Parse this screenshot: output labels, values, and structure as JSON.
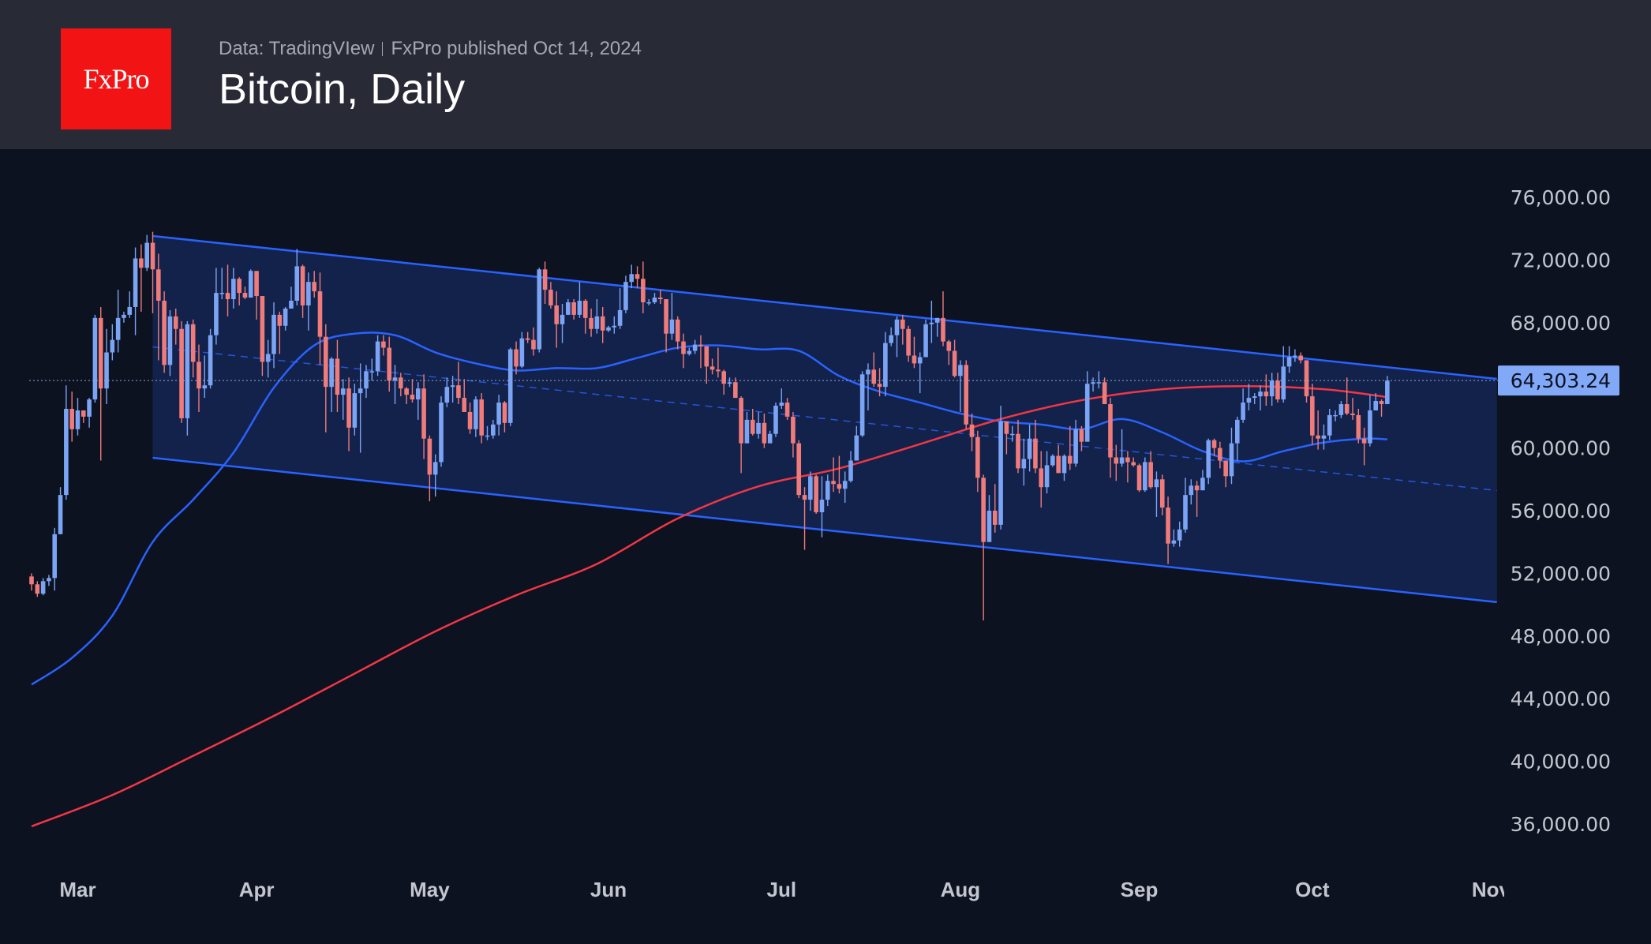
{
  "header": {
    "logo_text": "FxPro",
    "source": "Data: TradingVIew",
    "published": "FxPro published Oct 14, 2024",
    "title": "Bitcoin, Daily"
  },
  "colors": {
    "background": "#0c1220",
    "header": "#282a36",
    "logo": "#f21414",
    "up_candle": "#7ba4f5",
    "down_candle": "#f07b7b",
    "channel_line": "#2962ff",
    "channel_fill": "#13224a",
    "ma_blue": "#2962ff",
    "ma_red": "#f23645",
    "price_tag": "#82a8f8"
  },
  "chart_data": {
    "type": "candlestick",
    "title": "Bitcoin, Daily",
    "ylim": [
      34000,
      78000
    ],
    "y_ticks": [
      "76,000.00",
      "72,000.00",
      "68,000.00",
      "64,000.00",
      "60,000.00",
      "56,000.00",
      "52,000.00",
      "48,000.00",
      "44,000.00",
      "40,000.00",
      "36,000.00"
    ],
    "y_tick_values": [
      76000,
      72000,
      68000,
      64000,
      60000,
      56000,
      52000,
      48000,
      44000,
      40000,
      36000
    ],
    "x_ticks": [
      {
        "label": "Mar",
        "date": "2024-03-01"
      },
      {
        "label": "Apr",
        "date": "2024-04-01"
      },
      {
        "label": "May",
        "date": "2024-05-01"
      },
      {
        "label": "Jun",
        "date": "2024-06-01"
      },
      {
        "label": "Jul",
        "date": "2024-07-01"
      },
      {
        "label": "Aug",
        "date": "2024-08-01"
      },
      {
        "label": "Sep",
        "date": "2024-09-01"
      },
      {
        "label": "Oct",
        "date": "2024-10-01"
      },
      {
        "label": "Nov",
        "date": "2024-11-01"
      }
    ],
    "last_price": 64303.24,
    "last_price_label": "64,303.24",
    "grid": false,
    "candles": {
      "start_date": "2024-02-22",
      "first_open": 51800,
      "close": [
        51300,
        50700,
        51500,
        51700,
        54500,
        57000,
        62500,
        61200,
        62400,
        62000,
        63100,
        68300,
        63800,
        66100,
        66900,
        68300,
        68500,
        69000,
        72100,
        71500,
        73100,
        71400,
        69400,
        65300,
        68400,
        67600,
        61900,
        67900,
        65500,
        63800,
        64000,
        67200,
        69900,
        69900,
        69500,
        70800,
        69900,
        69600,
        71300,
        69700,
        65500,
        66000,
        68500,
        67800,
        68900,
        69400,
        71600,
        69100,
        70600,
        70000,
        67100,
        63900,
        65700,
        63400,
        63800,
        61300,
        63500,
        63800,
        64900,
        64900,
        66800,
        66400,
        64300,
        64500,
        63800,
        63400,
        63100,
        63800,
        60600,
        58300,
        59100,
        62900,
        63900,
        64000,
        63200,
        62300,
        61200,
        63100,
        60800,
        60800,
        61500,
        62900,
        61600,
        66300,
        65200,
        67000,
        66900,
        66300,
        71400,
        70100,
        69100,
        67900,
        68500,
        69300,
        68500,
        69400,
        68300,
        67600,
        68400,
        67500,
        67700,
        67800,
        68800,
        70600,
        71100,
        70800,
        69300,
        69300,
        69600,
        69500,
        67300,
        68200,
        66800,
        66000,
        66200,
        66600,
        66500,
        65200,
        65000,
        64900,
        64100,
        64200,
        63200,
        60300,
        61800,
        60900,
        61600,
        60300,
        60900,
        62700,
        62900,
        62000,
        60300,
        57000,
        56700,
        58200,
        55900,
        56700,
        57900,
        57700,
        57400,
        57900,
        59200,
        60800,
        64700,
        65000,
        64100,
        63900,
        66700,
        67200,
        68200,
        67600,
        65900,
        65400,
        65800,
        67900,
        68000,
        68300,
        66800,
        66200,
        64600,
        65300,
        61500,
        60700,
        58100,
        54000,
        56000,
        55100,
        61700,
        60900,
        60900,
        58700,
        59300,
        60600,
        58700,
        57500,
        58900,
        59500,
        58400,
        59500,
        59000,
        61200,
        60400,
        64100,
        64200,
        64200,
        62800,
        59400,
        59000,
        59400,
        59100,
        58900,
        57300,
        59100,
        57500,
        58000,
        56200,
        53900,
        54100,
        54800,
        57000,
        57600,
        57300,
        58100,
        60500,
        60000,
        59200,
        58200,
        60300,
        61800,
        62900,
        63200,
        63300,
        63600,
        63300,
        64300,
        63100,
        65200,
        65800,
        65900,
        65600,
        63300,
        60800,
        60600,
        60800,
        62100,
        62100,
        62800,
        62200,
        62100,
        60600,
        60300,
        62400,
        63000,
        62800,
        64303.24
      ],
      "high": [
        52000,
        51500,
        51700,
        51900,
        54900,
        57500,
        64000,
        63600,
        63200,
        62400,
        63200,
        68500,
        69000,
        67600,
        67900,
        70100,
        68700,
        70000,
        72800,
        73000,
        73600,
        73800,
        72400,
        70000,
        68800,
        68900,
        68100,
        68100,
        68200,
        66600,
        65900,
        67600,
        71500,
        71500,
        71700,
        71500,
        70900,
        70300,
        71400,
        71300,
        69700,
        66900,
        69300,
        68700,
        69000,
        70300,
        72700,
        71700,
        71200,
        71300,
        71200,
        67900,
        65800,
        66900,
        64400,
        64500,
        64100,
        65400,
        65300,
        65700,
        67200,
        67200,
        67100,
        65300,
        64800,
        63900,
        64400,
        64200,
        64700,
        60800,
        59600,
        63300,
        64500,
        64600,
        65500,
        64400,
        62900,
        63300,
        63500,
        61400,
        61800,
        63400,
        63000,
        66400,
        66800,
        67400,
        67400,
        67700,
        71500,
        71900,
        70600,
        70000,
        69200,
        69500,
        69500,
        70600,
        69500,
        68900,
        69500,
        69000,
        67800,
        68400,
        70200,
        71000,
        71700,
        71600,
        71900,
        69500,
        69900,
        70100,
        69500,
        69900,
        68400,
        67300,
        66400,
        66900,
        67200,
        66000,
        65700,
        66400,
        65000,
        64500,
        64500,
        63300,
        62300,
        62500,
        62300,
        62200,
        61100,
        62900,
        63800,
        63200,
        62300,
        60500,
        57500,
        58500,
        58300,
        58200,
        58300,
        59400,
        59500,
        58500,
        59800,
        61400,
        64900,
        65400,
        66100,
        65100,
        67400,
        67700,
        68400,
        68500,
        67800,
        67100,
        66100,
        68200,
        69400,
        68300,
        70000,
        66900,
        66900,
        65600,
        65600,
        62200,
        61100,
        58300,
        57000,
        57700,
        62700,
        61700,
        61400,
        61800,
        60600,
        61500,
        61800,
        59800,
        59800,
        59600,
        60200,
        59600,
        61400,
        61800,
        61400,
        64900,
        64500,
        64900,
        64500,
        63200,
        60200,
        61200,
        59800,
        59400,
        59000,
        59400,
        59800,
        58500,
        58300,
        56900,
        54800,
        55300,
        58100,
        58000,
        57900,
        58600,
        60600,
        60600,
        60400,
        59200,
        61300,
        62000,
        63800,
        64100,
        63500,
        64000,
        64700,
        64800,
        64800,
        66500,
        66500,
        66300,
        66100,
        65600,
        64100,
        62400,
        61500,
        62500,
        62400,
        63000,
        64500,
        63200,
        62500,
        61300,
        63400,
        63500,
        63100,
        64600
      ],
      "low": [
        50900,
        50500,
        50600,
        51200,
        50900,
        54500,
        56700,
        60400,
        60800,
        61600,
        61300,
        62900,
        59200,
        62800,
        65600,
        66100,
        68000,
        68300,
        67200,
        68700,
        71300,
        68600,
        65600,
        64800,
        64600,
        66600,
        61600,
        60800,
        64500,
        62300,
        63200,
        63800,
        66600,
        69500,
        68400,
        68900,
        69100,
        69500,
        69600,
        68200,
        64600,
        64500,
        65100,
        66000,
        67500,
        68900,
        69100,
        68300,
        67500,
        69600,
        65300,
        61000,
        62300,
        62300,
        61800,
        59800,
        60800,
        59700,
        63200,
        64300,
        64600,
        65900,
        63600,
        62800,
        63300,
        62800,
        62900,
        61800,
        59300,
        56600,
        56900,
        58800,
        62600,
        62900,
        62800,
        62300,
        60900,
        60700,
        60300,
        60500,
        60600,
        60800,
        61000,
        61400,
        64700,
        65100,
        66700,
        65900,
        66100,
        69200,
        68900,
        66400,
        66700,
        68500,
        68200,
        68300,
        67300,
        67100,
        67300,
        66700,
        67400,
        67300,
        67600,
        68600,
        70200,
        70200,
        68600,
        69100,
        69200,
        69200,
        66100,
        66900,
        66300,
        65100,
        65900,
        66000,
        65100,
        64100,
        64700,
        64500,
        63400,
        63900,
        63200,
        58400,
        60300,
        60800,
        60600,
        60000,
        60300,
        60700,
        62500,
        61800,
        59400,
        56800,
        53500,
        56000,
        55800,
        54300,
        56300,
        57200,
        57100,
        56500,
        57800,
        59300,
        60700,
        62400,
        63900,
        63300,
        63300,
        66500,
        65800,
        66600,
        65500,
        65100,
        63500,
        65800,
        66700,
        67100,
        66500,
        65300,
        64500,
        62300,
        61200,
        59800,
        57200,
        49000,
        54000,
        54600,
        54800,
        59600,
        60400,
        58400,
        57600,
        58500,
        58400,
        56200,
        57100,
        58800,
        58400,
        57900,
        58600,
        58800,
        59800,
        60400,
        63600,
        63800,
        62800,
        58100,
        57900,
        58800,
        57800,
        58800,
        57200,
        57200,
        57400,
        55600,
        55700,
        52600,
        53700,
        53700,
        54600,
        56400,
        55600,
        57300,
        57700,
        59500,
        58700,
        57500,
        57700,
        59200,
        61600,
        62400,
        62800,
        62400,
        62700,
        62700,
        62900,
        62900,
        64800,
        65500,
        65400,
        62900,
        60200,
        59900,
        59900,
        60500,
        61700,
        61900,
        62100,
        61800,
        60300,
        58900,
        60100,
        62400,
        62000,
        62800
      ]
    },
    "moving_averages": [
      {
        "color": "#2962ff",
        "points": [
          [
            "2024-02-22",
            44900
          ],
          [
            "2024-02-29",
            46600
          ],
          [
            "2024-03-07",
            49300
          ],
          [
            "2024-03-14",
            54000
          ],
          [
            "2024-03-21",
            56700
          ],
          [
            "2024-03-28",
            59700
          ],
          [
            "2024-04-04",
            63850
          ],
          [
            "2024-04-11",
            66550
          ],
          [
            "2024-04-18",
            67300
          ],
          [
            "2024-04-25",
            67200
          ],
          [
            "2024-05-02",
            66100
          ],
          [
            "2024-05-09",
            65400
          ],
          [
            "2024-05-16",
            64950
          ],
          [
            "2024-05-23",
            65100
          ],
          [
            "2024-05-30",
            65100
          ],
          [
            "2024-06-06",
            65750
          ],
          [
            "2024-06-13",
            66400
          ],
          [
            "2024-06-20",
            66550
          ],
          [
            "2024-06-27",
            66300
          ],
          [
            "2024-07-04",
            66200
          ],
          [
            "2024-07-11",
            64600
          ],
          [
            "2024-07-18",
            63600
          ],
          [
            "2024-07-25",
            62900
          ],
          [
            "2024-08-01",
            62200
          ],
          [
            "2024-08-08",
            61700
          ],
          [
            "2024-08-15",
            61500
          ],
          [
            "2024-08-22",
            61200
          ],
          [
            "2024-08-29",
            61850
          ],
          [
            "2024-09-05",
            61000
          ],
          [
            "2024-09-12",
            59800
          ],
          [
            "2024-09-19",
            59150
          ],
          [
            "2024-09-26",
            59800
          ],
          [
            "2024-10-03",
            60350
          ],
          [
            "2024-10-10",
            60600
          ],
          [
            "2024-10-14",
            60550
          ]
        ]
      },
      {
        "color": "#f23645",
        "points": [
          [
            "2024-02-22",
            35850
          ],
          [
            "2024-03-07",
            37850
          ],
          [
            "2024-03-21",
            40350
          ],
          [
            "2024-04-04",
            42900
          ],
          [
            "2024-04-18",
            45600
          ],
          [
            "2024-05-02",
            48300
          ],
          [
            "2024-05-16",
            50600
          ],
          [
            "2024-05-30",
            52600
          ],
          [
            "2024-06-13",
            55500
          ],
          [
            "2024-06-27",
            57550
          ],
          [
            "2024-07-11",
            58700
          ],
          [
            "2024-07-25",
            60250
          ],
          [
            "2024-08-08",
            61850
          ],
          [
            "2024-08-22",
            63050
          ],
          [
            "2024-09-05",
            63750
          ],
          [
            "2024-09-19",
            63950
          ],
          [
            "2024-10-03",
            63750
          ],
          [
            "2024-10-14",
            63250
          ]
        ]
      }
    ],
    "channel": {
      "start_date": "2024-03-14",
      "end_date": "2024-11-02",
      "upper": [
        73530,
        64413
      ],
      "lower": [
        59375,
        50160
      ]
    }
  }
}
